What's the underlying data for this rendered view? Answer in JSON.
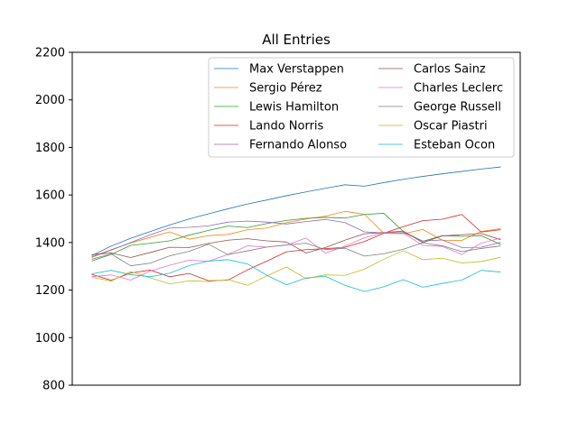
{
  "chart_data": {
    "type": "line",
    "title": "All Entries",
    "xlabel": "",
    "ylabel": "",
    "ylim": [
      800,
      2200
    ],
    "yticks": [
      800,
      1000,
      1200,
      1400,
      1600,
      1800,
      2000,
      2200
    ],
    "x": [
      1,
      2,
      3,
      4,
      5,
      6,
      7,
      8,
      9,
      10,
      11,
      12,
      13,
      14,
      15,
      16,
      17,
      18,
      19,
      20,
      21,
      22
    ],
    "xlim": [
      0,
      23
    ],
    "legend_position": "upper-right",
    "legend_columns": 2,
    "series": [
      {
        "name": "Max Verstappen",
        "color": "#1f77b4",
        "values": [
          1345,
          1385,
          1418,
          1446,
          1474,
          1499,
          1521,
          1542,
          1562,
          1579,
          1597,
          1613,
          1628,
          1643,
          1637,
          1652,
          1666,
          1678,
          1689,
          1699,
          1709,
          1718
        ]
      },
      {
        "name": "Sergio Pérez",
        "color": "#ff7f0e",
        "values": [
          1340,
          1370,
          1398,
          1422,
          1445,
          1414,
          1429,
          1434,
          1454,
          1461,
          1484,
          1499,
          1511,
          1531,
          1519,
          1439,
          1437,
          1455,
          1410,
          1409,
          1447,
          1458
        ]
      },
      {
        "name": "Lewis Hamilton",
        "color": "#2ca02c",
        "values": [
          1322,
          1350,
          1388,
          1397,
          1407,
          1431,
          1451,
          1469,
          1463,
          1480,
          1493,
          1502,
          1506,
          1503,
          1518,
          1523,
          1446,
          1405,
          1429,
          1426,
          1429,
          1392
        ]
      },
      {
        "name": "Lando Norris",
        "color": "#d62728",
        "values": [
          1266,
          1241,
          1272,
          1284,
          1256,
          1270,
          1239,
          1242,
          1285,
          1322,
          1361,
          1370,
          1374,
          1380,
          1404,
          1439,
          1467,
          1492,
          1498,
          1518,
          1444,
          1454
        ]
      },
      {
        "name": "Fernando Alonso",
        "color": "#9467bd",
        "values": [
          1338,
          1368,
          1400,
          1432,
          1461,
          1464,
          1470,
          1486,
          1490,
          1486,
          1478,
          1488,
          1497,
          1484,
          1445,
          1440,
          1442,
          1406,
          1411,
          1379,
          1380,
          1401
        ]
      },
      {
        "name": "Carlos Sainz",
        "color": "#8c564b",
        "values": [
          1349,
          1356,
          1337,
          1358,
          1380,
          1379,
          1396,
          1410,
          1416,
          1407,
          1402,
          1356,
          1379,
          1410,
          1437,
          1442,
          1448,
          1400,
          1428,
          1433,
          1438,
          1412
        ]
      },
      {
        "name": "Charles Leclerc",
        "color": "#e377c2",
        "values": [
          1256,
          1264,
          1242,
          1280,
          1304,
          1326,
          1321,
          1350,
          1386,
          1381,
          1389,
          1419,
          1355,
          1385,
          1420,
          1442,
          1439,
          1388,
          1384,
          1350,
          1397,
          1419
        ]
      },
      {
        "name": "George Russell",
        "color": "#7f7f7f",
        "values": [
          1330,
          1352,
          1302,
          1313,
          1344,
          1363,
          1393,
          1349,
          1365,
          1381,
          1390,
          1397,
          1370,
          1376,
          1343,
          1353,
          1372,
          1399,
          1386,
          1362,
          1375,
          1386
        ]
      },
      {
        "name": "Oscar Piastri",
        "color": "#bcbd22",
        "values": [
          1254,
          1238,
          1278,
          1252,
          1226,
          1239,
          1236,
          1244,
          1220,
          1260,
          1297,
          1248,
          1264,
          1262,
          1288,
          1330,
          1366,
          1328,
          1334,
          1314,
          1320,
          1338
        ]
      },
      {
        "name": "Esteban Ocon",
        "color": "#17becf",
        "values": [
          1268,
          1283,
          1265,
          1256,
          1271,
          1303,
          1322,
          1328,
          1310,
          1262,
          1222,
          1251,
          1258,
          1220,
          1194,
          1214,
          1244,
          1212,
          1228,
          1242,
          1283,
          1276
        ]
      }
    ]
  }
}
